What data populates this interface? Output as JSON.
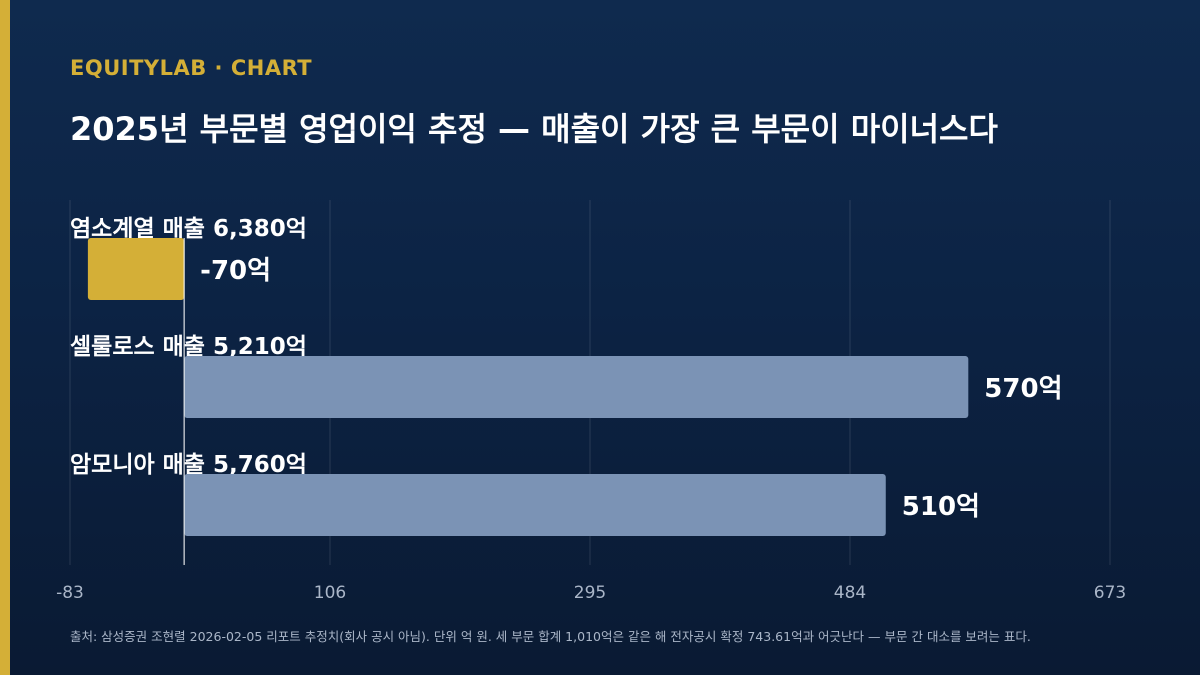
{
  "header": {
    "brand": "EQUITYLAB · CHART",
    "title": "2025년 부문별 영업이익 추정 — 매출이 가장 큰 부문이 마이너스다"
  },
  "footnote": "출처: 삼성증권 조현렬 2026-02-05 리포트 추정치(회사 공시 아님). 단위 억 원. 세 부문 합계 1,010억은 같은 해 전자공시 확정 743.61억과 어긋난다 — 부문 간 대소를 보려는 표다.",
  "colors": {
    "accent": "#d4af37",
    "negative_bar": "#d4af37",
    "positive_bar": "#7b93b5",
    "background": "#0c2344"
  },
  "chart_data": {
    "type": "bar",
    "orientation": "horizontal",
    "categories": [
      "염소계열 매출 6,380억",
      "셀룰로스 매출 5,210억",
      "암모니아 매출 5,760억"
    ],
    "values": [
      -70,
      570,
      510
    ],
    "value_labels": [
      "-70억",
      "570억",
      "510억"
    ],
    "xlim": [
      -83,
      673
    ],
    "xticks": [
      -83,
      106,
      295,
      484,
      673
    ],
    "xtick_labels": [
      "-83",
      "106",
      "295",
      "484",
      "673"
    ],
    "grid": true,
    "highlight": [
      true,
      false,
      false
    ]
  }
}
